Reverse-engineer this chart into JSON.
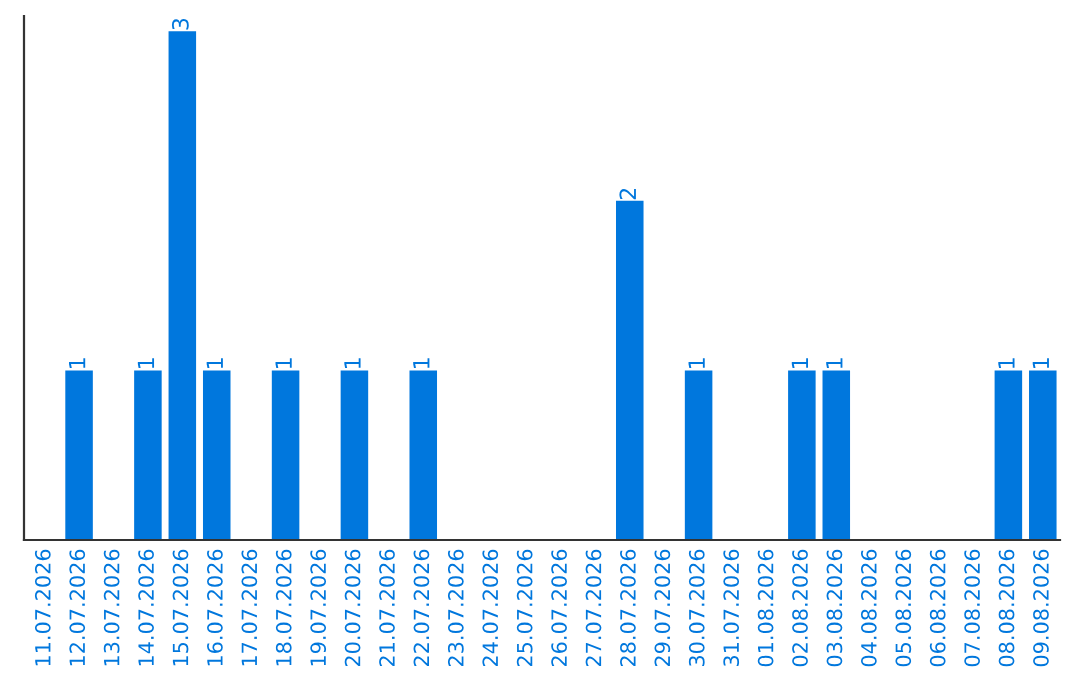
{
  "chart_data": {
    "type": "bar",
    "categories": [
      "11.07.2026",
      "12.07.2026",
      "13.07.2026",
      "14.07.2026",
      "15.07.2026",
      "16.07.2026",
      "17.07.2026",
      "18.07.2026",
      "19.07.2026",
      "20.07.2026",
      "21.07.2026",
      "22.07.2026",
      "23.07.2026",
      "24.07.2026",
      "25.07.2026",
      "26.07.2026",
      "27.07.2026",
      "28.07.2026",
      "29.07.2026",
      "30.07.2026",
      "31.07.2026",
      "01.08.2026",
      "02.08.2026",
      "03.08.2026",
      "04.08.2026",
      "05.08.2026",
      "06.08.2026",
      "07.08.2026",
      "08.08.2026",
      "09.08.2026"
    ],
    "values": [
      0,
      1,
      0,
      1,
      3,
      1,
      0,
      1,
      0,
      1,
      0,
      1,
      0,
      0,
      0,
      0,
      0,
      2,
      0,
      1,
      0,
      0,
      1,
      1,
      0,
      0,
      0,
      0,
      1,
      1
    ],
    "value_labels": [
      null,
      "1",
      null,
      "1",
      "3",
      "1",
      null,
      "1",
      null,
      "1",
      null,
      "1",
      null,
      null,
      null,
      null,
      null,
      "2",
      null,
      "1",
      null,
      null,
      "1",
      "1",
      null,
      null,
      null,
      null,
      "1",
      "1"
    ],
    "color": "#0077dd",
    "tick_labels": "x",
    "grid": false,
    "legend": false
  }
}
